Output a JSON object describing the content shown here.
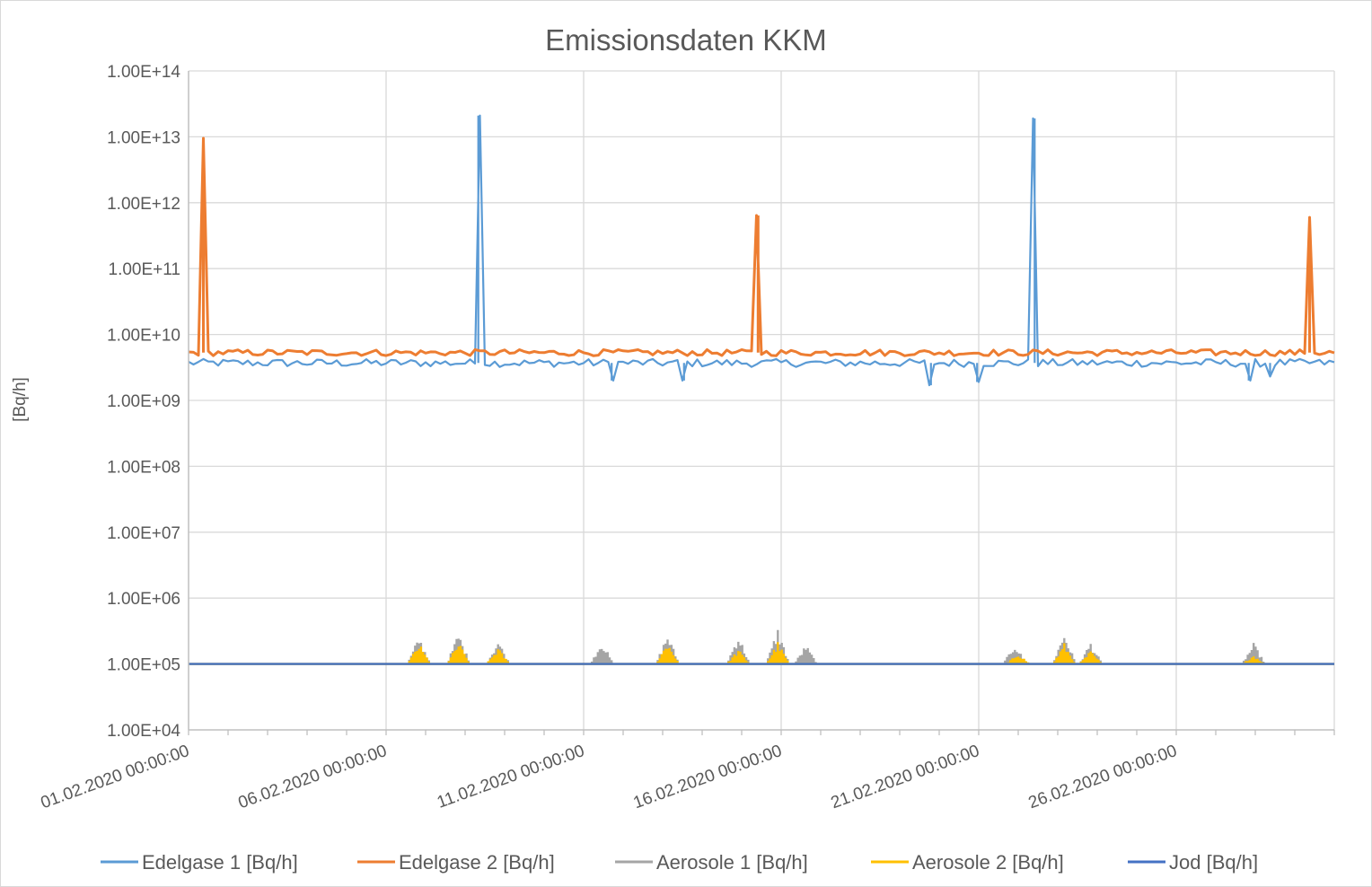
{
  "chart_data": {
    "type": "line",
    "title": "Emissionsdaten KKM",
    "xlabel": "",
    "ylabel": "[Bq/h]",
    "y_scale": "log",
    "ylim": [
      10000,
      100000000000000
    ],
    "y_ticks": [
      "1.00E+04",
      "1.00E+05",
      "1.00E+06",
      "1.00E+07",
      "1.00E+08",
      "1.00E+09",
      "1.00E+10",
      "1.00E+11",
      "1.00E+12",
      "1.00E+13",
      "1.00E+14"
    ],
    "xlim": [
      "01.02.2020 00:00:00",
      "01.03.2020 00:00:00"
    ],
    "x_ticks": [
      "01.02.2020 00:00:00",
      "06.02.2020 00:00:00",
      "11.02.2020 00:00:00",
      "16.02.2020 00:00:00",
      "21.02.2020 00:00:00",
      "26.02.2020 00:00:00"
    ],
    "grid": true,
    "legend_position": "bottom",
    "series": [
      {
        "name": "Edelgase 1 [Bq/h]",
        "color": "#5b9bd5",
        "baseline": 3700000000,
        "points": [
          {
            "x": "08.02.2020 08:00:00",
            "y": 21000000000000
          },
          {
            "x": "22.02.2020 10:00:00",
            "y": 19000000000000
          },
          {
            "x": "11.02.2020 17:00:00",
            "y": 2000000000
          },
          {
            "x": "13.02.2020 13:00:00",
            "y": 2000000000
          },
          {
            "x": "19.02.2020 19:00:00",
            "y": 1700000000
          },
          {
            "x": "20.02.2020 23:00:00",
            "y": 1900000000
          },
          {
            "x": "27.02.2020 20:00:00",
            "y": 2000000000
          },
          {
            "x": "28.02.2020 09:00:00",
            "y": 2300000000
          }
        ]
      },
      {
        "name": "Edelgase 2 [Bq/h]",
        "color": "#ed7d31",
        "baseline": 5300000000,
        "points": [
          {
            "x": "01.02.2020 09:00:00",
            "y": 9500000000000
          },
          {
            "x": "15.02.2020 10:00:00",
            "y": 640000000000
          },
          {
            "x": "29.02.2020 09:00:00",
            "y": 600000000000
          }
        ]
      },
      {
        "name": "Aerosole 1 [Bq/h]",
        "color": "#a5a5a5",
        "baseline": 100000,
        "points": [
          {
            "x": "06.02.2020 20:00:00",
            "y": 270000
          },
          {
            "x": "07.02.2020 20:00:00",
            "y": 310000
          },
          {
            "x": "08.02.2020 20:00:00",
            "y": 240000
          },
          {
            "x": "11.02.2020 11:00:00",
            "y": 230000
          },
          {
            "x": "13.02.2020 03:00:00",
            "y": 300000
          },
          {
            "x": "14.02.2020 22:00:00",
            "y": 290000
          },
          {
            "x": "15.02.2020 22:00:00",
            "y": 360000
          },
          {
            "x": "16.02.2020 15:00:00",
            "y": 200000
          },
          {
            "x": "21.02.2020 22:00:00",
            "y": 210000
          },
          {
            "x": "23.02.2020 04:00:00",
            "y": 320000
          },
          {
            "x": "23.02.2020 20:00:00",
            "y": 220000
          },
          {
            "x": "27.02.2020 23:00:00",
            "y": 210000
          }
        ]
      },
      {
        "name": "Aerosole 2 [Bq/h]",
        "color": "#ffc000",
        "baseline": 100000,
        "points": [
          {
            "x": "06.02.2020 20:00:00",
            "y": 210000
          },
          {
            "x": "07.02.2020 20:00:00",
            "y": 220000
          },
          {
            "x": "08.02.2020 20:00:00",
            "y": 180000
          },
          {
            "x": "13.02.2020 03:00:00",
            "y": 230000
          },
          {
            "x": "14.02.2020 22:00:00",
            "y": 170000
          },
          {
            "x": "15.02.2020 22:00:00",
            "y": 220000
          },
          {
            "x": "22.02.2020 00:00:00",
            "y": 150000
          },
          {
            "x": "23.02.2020 04:00:00",
            "y": 210000
          },
          {
            "x": "23.02.2020 20:00:00",
            "y": 160000
          },
          {
            "x": "27.02.2020 23:00:00",
            "y": 140000
          }
        ]
      },
      {
        "name": "Jod [Bq/h]",
        "color": "#4472c4",
        "baseline": 100000,
        "points": []
      }
    ]
  }
}
